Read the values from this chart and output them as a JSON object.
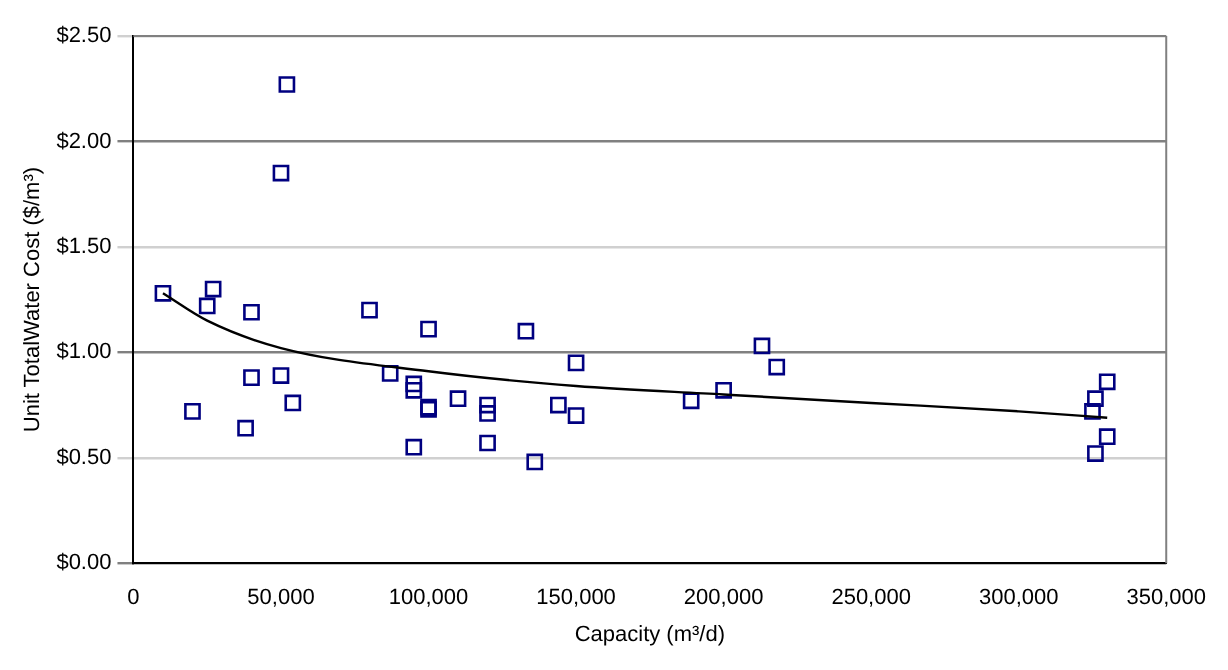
{
  "chart_data": {
    "type": "scatter",
    "xlabel": "Capacity (m³/d)",
    "ylabel": "Unit TotalWater Cost ($/m³)",
    "xlim": [
      0,
      350000
    ],
    "xticks": [
      {
        "value": 0,
        "label": "0"
      },
      {
        "value": 50000,
        "label": "50,000"
      },
      {
        "value": 100000,
        "label": "100,000"
      },
      {
        "value": 150000,
        "label": "150,000"
      },
      {
        "value": 200000,
        "label": "200,000"
      },
      {
        "value": 250000,
        "label": "250,000"
      },
      {
        "value": 300000,
        "label": "300,000"
      },
      {
        "value": 350000,
        "label": "350,000"
      }
    ],
    "ylim": [
      0,
      2.5
    ],
    "yticks": [
      {
        "value": 0,
        "label": "$0.00"
      },
      {
        "value": 0.5,
        "label": "$0.50"
      },
      {
        "value": 1,
        "label": "$1.00"
      },
      {
        "value": 1.5,
        "label": "$1.50"
      },
      {
        "value": 2,
        "label": "$2.00"
      },
      {
        "value": 2.5,
        "label": "$2.50"
      }
    ],
    "grid": "y",
    "legend": false,
    "marker": "square",
    "series": [
      {
        "type": "scatter",
        "color": "#000080",
        "x": [
          10000,
          20000,
          25000,
          27000,
          38000,
          40000,
          40000,
          50000,
          50000,
          52000,
          54000,
          80000,
          87000,
          95000,
          95000,
          95000,
          100000,
          100000,
          100000,
          110000,
          120000,
          120000,
          120000,
          133000,
          136000,
          144000,
          150000,
          150000,
          189000,
          200000,
          213000,
          218000,
          325000,
          326000,
          326000,
          330000,
          330000
        ],
        "values": [
          1.28,
          0.72,
          1.22,
          1.3,
          0.64,
          1.19,
          0.88,
          1.85,
          0.89,
          2.27,
          0.76,
          1.2,
          0.9,
          0.85,
          0.82,
          0.55,
          1.11,
          0.74,
          0.73,
          0.78,
          0.75,
          0.71,
          0.57,
          1.1,
          0.48,
          0.75,
          0.95,
          0.7,
          0.77,
          0.82,
          1.03,
          0.93,
          0.72,
          0.78,
          0.52,
          0.86,
          0.6
        ]
      },
      {
        "type": "line",
        "color": "#000000",
        "marker": "none",
        "x": [
          10000,
          25000,
          50000,
          100000,
          150000,
          200000,
          250000,
          300000,
          330000
        ],
        "values": [
          1.28,
          1.15,
          1.02,
          0.91,
          0.84,
          0.8,
          0.76,
          0.72,
          0.69
        ]
      }
    ]
  }
}
